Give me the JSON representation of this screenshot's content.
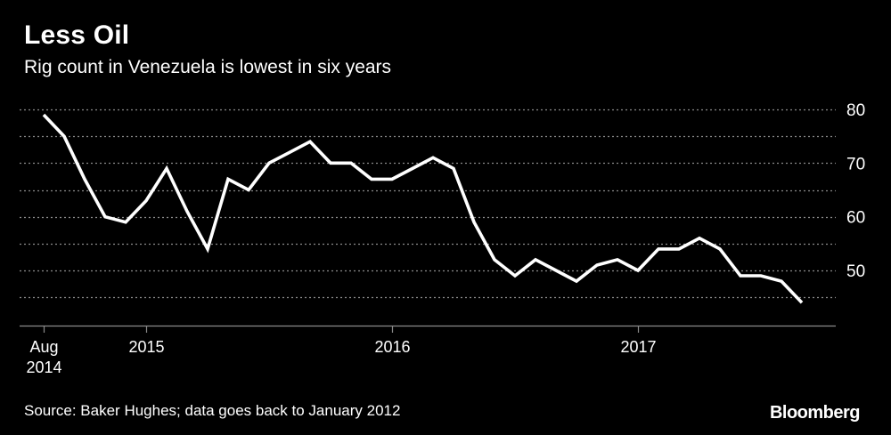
{
  "header": {
    "title": "Less Oil",
    "subtitle": "Rig count in Venezuela is lowest in six years"
  },
  "footer": {
    "source": "Source: Baker Hughes; data goes back to January 2012",
    "brand": "Bloomberg"
  },
  "colors": {
    "background": "#000000",
    "line": "#ffffff",
    "grid": "#8a8a8a",
    "text": "#ffffff"
  },
  "chart_data": {
    "type": "line",
    "title": "Less Oil",
    "subtitle": "Rig count in Venezuela is lowest in six years",
    "xlabel": "",
    "ylabel": "",
    "ylim": [
      39,
      82
    ],
    "yticks": [
      50,
      60,
      70,
      80
    ],
    "gridlines_y": [
      45,
      50,
      55,
      60,
      65,
      70,
      75,
      80
    ],
    "y_axis_position": "right",
    "xlim": [
      "2014-08",
      "2017-10"
    ],
    "xticks": [
      {
        "x": "2014-08",
        "label": "Aug",
        "label2": "2014"
      },
      {
        "x": "2015-01",
        "label": "2015",
        "label2": ""
      },
      {
        "x": "2016-01",
        "label": "2016",
        "label2": ""
      },
      {
        "x": "2017-01",
        "label": "2017",
        "label2": ""
      }
    ],
    "series": [
      {
        "name": "Venezuela rig count",
        "x": [
          "2014-08",
          "2014-09",
          "2014-10",
          "2014-11",
          "2014-12",
          "2015-01",
          "2015-02",
          "2015-03",
          "2015-04",
          "2015-05",
          "2015-06",
          "2015-07",
          "2015-08",
          "2015-09",
          "2015-10",
          "2015-11",
          "2015-12",
          "2016-01",
          "2016-02",
          "2016-03",
          "2016-04",
          "2016-05",
          "2016-06",
          "2016-07",
          "2016-08",
          "2016-09",
          "2016-10",
          "2016-11",
          "2016-12",
          "2017-01",
          "2017-02",
          "2017-03",
          "2017-04",
          "2017-05",
          "2017-06",
          "2017-07",
          "2017-08",
          "2017-09"
        ],
        "values": [
          79,
          75,
          67,
          60,
          59,
          63,
          69,
          61,
          54,
          67,
          65,
          70,
          72,
          74,
          70,
          70,
          67,
          67,
          69,
          71,
          69,
          59,
          52,
          49,
          52,
          50,
          48,
          51,
          52,
          50,
          54,
          54,
          56,
          54,
          49,
          49,
          48,
          44
        ]
      }
    ]
  }
}
